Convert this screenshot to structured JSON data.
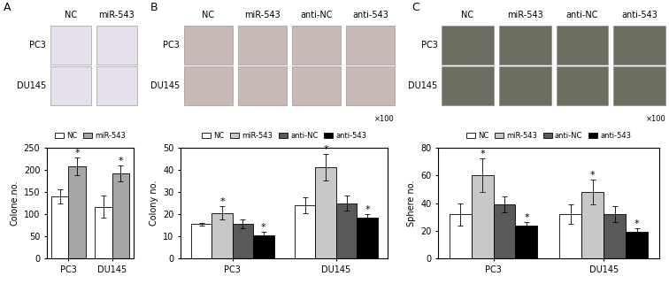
{
  "panels": [
    {
      "label": "A",
      "image_columns": [
        "NC",
        "miR-543"
      ],
      "image_rows": [
        "PC3",
        "DU145"
      ]
    },
    {
      "label": "B",
      "image_columns": [
        "NC",
        "miR-543",
        "anti-NC",
        "anti-543"
      ],
      "image_rows": [
        "PC3",
        "DU145"
      ],
      "magnification": "×100"
    },
    {
      "label": "C",
      "image_columns": [
        "NC",
        "miR-543",
        "anti-NC",
        "anti-543"
      ],
      "image_rows": [
        "PC3",
        "DU145"
      ],
      "magnification": "×100"
    }
  ],
  "chart_data": [
    {
      "type": "bar",
      "y_label": "Colone.no.",
      "categories": [
        "PC3",
        "DU145"
      ],
      "series": [
        {
          "name": "NC",
          "color": "#ffffff",
          "values": [
            140,
            117
          ],
          "errors": [
            15,
            25
          ]
        },
        {
          "name": "miR-543",
          "color": "#a6a6a6",
          "values": [
            207,
            192
          ],
          "errors": [
            20,
            18
          ],
          "annotations": [
            "*",
            "*"
          ]
        }
      ],
      "ylim": [
        0,
        250
      ],
      "yticks": [
        0,
        50,
        100,
        150,
        200,
        250
      ],
      "legend": "top"
    },
    {
      "type": "bar",
      "y_label": "Colony no.",
      "categories": [
        "PC3",
        "DU145"
      ],
      "series": [
        {
          "name": "NC",
          "color": "#ffffff",
          "values": [
            15.5,
            24
          ],
          "errors": [
            0.5,
            3.5
          ]
        },
        {
          "name": "miR-543",
          "color": "#c8c8c8",
          "values": [
            20.5,
            41
          ],
          "errors": [
            3,
            6
          ],
          "annotations": [
            "*",
            "*"
          ]
        },
        {
          "name": "anti-NC",
          "color": "#595959",
          "values": [
            15.5,
            25
          ],
          "errors": [
            2,
            3.5
          ]
        },
        {
          "name": "anti-543",
          "color": "#000000",
          "values": [
            10.5,
            18.5
          ],
          "errors": [
            1.5,
            1.5
          ],
          "annotations": [
            "*",
            "*"
          ]
        }
      ],
      "ylim": [
        0,
        50
      ],
      "yticks": [
        0,
        10,
        20,
        30,
        40,
        50
      ],
      "legend": "top"
    },
    {
      "type": "bar",
      "y_label": "Sphere no.",
      "categories": [
        "PC3",
        "DU145"
      ],
      "series": [
        {
          "name": "NC",
          "color": "#ffffff",
          "values": [
            32,
            32
          ],
          "errors": [
            8,
            7
          ]
        },
        {
          "name": "miR-543",
          "color": "#c8c8c8",
          "values": [
            60,
            48
          ],
          "errors": [
            12,
            9
          ],
          "annotations": [
            "*",
            "*"
          ]
        },
        {
          "name": "anti-NC",
          "color": "#595959",
          "values": [
            39,
            32
          ],
          "errors": [
            6,
            6
          ]
        },
        {
          "name": "anti-543",
          "color": "#000000",
          "values": [
            24,
            19
          ],
          "errors": [
            2,
            3
          ],
          "annotations": [
            "*",
            "*"
          ]
        }
      ],
      "ylim": [
        0,
        80
      ],
      "yticks": [
        0,
        20,
        40,
        60,
        80
      ],
      "legend": "top"
    }
  ]
}
